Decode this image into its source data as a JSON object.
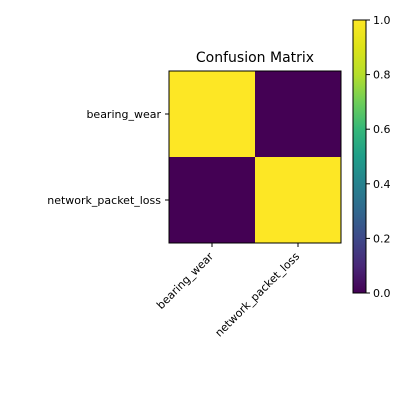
{
  "chart_data": {
    "type": "heatmap",
    "title": "Confusion Matrix",
    "x_categories": [
      "bearing_wear",
      "network_packet_loss"
    ],
    "y_categories": [
      "bearing_wear",
      "network_packet_loss"
    ],
    "matrix": [
      [
        1.0,
        0.0
      ],
      [
        0.0,
        1.0
      ]
    ],
    "value_range": [
      0.0,
      1.0
    ],
    "colormap": "viridis",
    "colorbar_ticks": [
      "0.0",
      "0.2",
      "0.4",
      "0.6",
      "0.8",
      "1.0"
    ],
    "colors": {
      "low": "#440154",
      "high": "#fde725"
    }
  }
}
